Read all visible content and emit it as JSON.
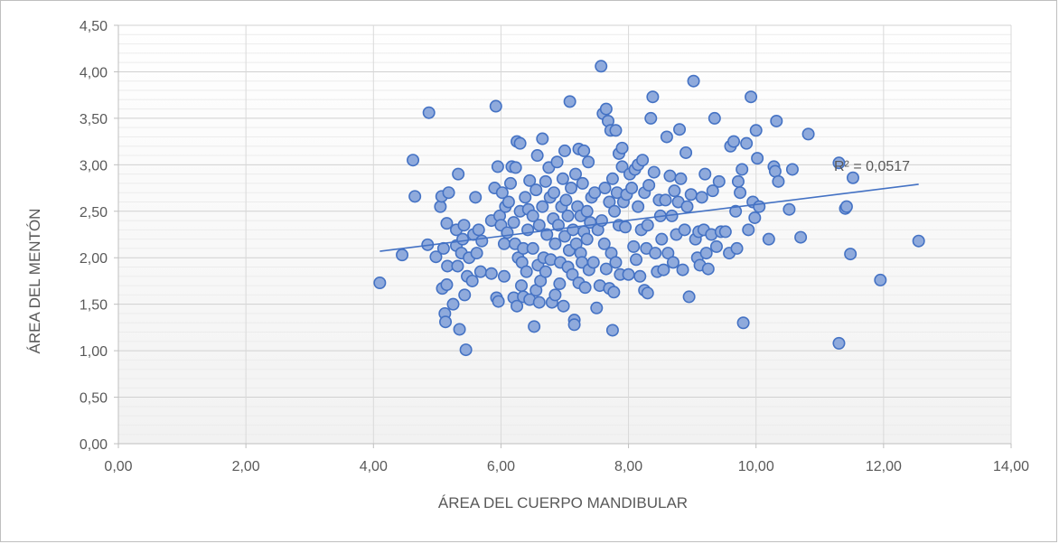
{
  "chart_data": {
    "type": "scatter",
    "title": "",
    "xlabel": "ÁREA DEL CUERPO MANDIBULAR",
    "ylabel": "ÁREA DEL MENTÓN",
    "xlim": [
      0,
      14
    ],
    "ylim": [
      0,
      4.5
    ],
    "x_ticks": [
      "0,00",
      "2,00",
      "4,00",
      "6,00",
      "8,00",
      "10,00",
      "12,00",
      "14,00"
    ],
    "y_ticks": [
      "0,00",
      "0,50",
      "1,00",
      "1,50",
      "2,00",
      "2,50",
      "3,00",
      "3,50",
      "4,00",
      "4,50"
    ],
    "grid": true,
    "legend": "none",
    "colors": {
      "marker_fill": "#8faadc",
      "marker_edge": "#4472c4",
      "trendline": "#4472c4",
      "grid": "#d9d9d9"
    },
    "trendline": {
      "type": "linear",
      "x_range": [
        4.1,
        12.55
      ],
      "y_start": 2.07,
      "y_end": 2.79,
      "label": "R² = 0,0517"
    },
    "points": [
      [
        4.1,
        1.73
      ],
      [
        4.45,
        2.03
      ],
      [
        4.62,
        3.05
      ],
      [
        4.65,
        2.66
      ],
      [
        4.85,
        2.14
      ],
      [
        4.87,
        3.56
      ],
      [
        4.98,
        2.01
      ],
      [
        5.05,
        2.55
      ],
      [
        5.07,
        2.66
      ],
      [
        5.08,
        1.67
      ],
      [
        5.1,
        2.1
      ],
      [
        5.12,
        1.4
      ],
      [
        5.13,
        1.31
      ],
      [
        5.15,
        1.71
      ],
      [
        5.15,
        2.37
      ],
      [
        5.16,
        1.91
      ],
      [
        5.18,
        2.7
      ],
      [
        5.25,
        1.5
      ],
      [
        5.3,
        2.13
      ],
      [
        5.3,
        2.3
      ],
      [
        5.32,
        1.91
      ],
      [
        5.33,
        2.9
      ],
      [
        5.35,
        1.23
      ],
      [
        5.38,
        2.05
      ],
      [
        5.4,
        2.2
      ],
      [
        5.42,
        2.35
      ],
      [
        5.43,
        1.6
      ],
      [
        5.45,
        1.01
      ],
      [
        5.47,
        1.8
      ],
      [
        5.5,
        2.0
      ],
      [
        5.55,
        1.75
      ],
      [
        5.57,
        2.25
      ],
      [
        5.6,
        2.65
      ],
      [
        5.62,
        2.05
      ],
      [
        5.65,
        2.3
      ],
      [
        5.68,
        1.85
      ],
      [
        5.7,
        2.18
      ],
      [
        5.85,
        1.83
      ],
      [
        5.85,
        2.4
      ],
      [
        5.9,
        2.75
      ],
      [
        5.92,
        3.63
      ],
      [
        5.93,
        1.57
      ],
      [
        5.95,
        2.98
      ],
      [
        5.96,
        1.53
      ],
      [
        5.98,
        2.45
      ],
      [
        6.0,
        2.35
      ],
      [
        6.02,
        2.7
      ],
      [
        6.05,
        2.15
      ],
      [
        6.05,
        1.8
      ],
      [
        6.07,
        2.55
      ],
      [
        6.1,
        2.27
      ],
      [
        6.12,
        2.6
      ],
      [
        6.15,
        2.8
      ],
      [
        6.17,
        2.98
      ],
      [
        6.2,
        2.38
      ],
      [
        6.2,
        1.57
      ],
      [
        6.22,
        2.15
      ],
      [
        6.23,
        2.97
      ],
      [
        6.25,
        3.25
      ],
      [
        6.25,
        1.48
      ],
      [
        6.27,
        2.0
      ],
      [
        6.3,
        3.23
      ],
      [
        6.3,
        2.5
      ],
      [
        6.32,
        1.7
      ],
      [
        6.33,
        1.95
      ],
      [
        6.35,
        2.1
      ],
      [
        6.35,
        1.58
      ],
      [
        6.38,
        2.65
      ],
      [
        6.4,
        1.85
      ],
      [
        6.42,
        2.3
      ],
      [
        6.43,
        2.52
      ],
      [
        6.45,
        1.55
      ],
      [
        6.45,
        2.83
      ],
      [
        6.5,
        2.45
      ],
      [
        6.5,
        2.1
      ],
      [
        6.52,
        1.26
      ],
      [
        6.55,
        1.65
      ],
      [
        6.55,
        2.73
      ],
      [
        6.57,
        3.1
      ],
      [
        6.58,
        1.92
      ],
      [
        6.6,
        2.35
      ],
      [
        6.6,
        1.52
      ],
      [
        6.62,
        1.75
      ],
      [
        6.65,
        2.55
      ],
      [
        6.65,
        3.28
      ],
      [
        6.67,
        2.0
      ],
      [
        6.7,
        2.82
      ],
      [
        6.7,
        1.85
      ],
      [
        6.72,
        2.25
      ],
      [
        6.75,
        2.97
      ],
      [
        6.77,
        2.65
      ],
      [
        6.78,
        1.98
      ],
      [
        6.8,
        1.52
      ],
      [
        6.82,
        2.42
      ],
      [
        6.83,
        2.7
      ],
      [
        6.85,
        1.6
      ],
      [
        6.85,
        2.15
      ],
      [
        6.88,
        3.03
      ],
      [
        6.9,
        2.35
      ],
      [
        6.92,
        1.72
      ],
      [
        6.93,
        1.95
      ],
      [
        6.95,
        2.55
      ],
      [
        6.97,
        2.85
      ],
      [
        6.98,
        1.48
      ],
      [
        7.0,
        3.15
      ],
      [
        7.0,
        2.23
      ],
      [
        7.02,
        2.62
      ],
      [
        7.05,
        1.9
      ],
      [
        7.05,
        2.45
      ],
      [
        7.07,
        2.08
      ],
      [
        7.08,
        3.68
      ],
      [
        7.1,
        2.75
      ],
      [
        7.12,
        1.82
      ],
      [
        7.13,
        2.3
      ],
      [
        7.15,
        1.33
      ],
      [
        7.15,
        1.28
      ],
      [
        7.17,
        2.9
      ],
      [
        7.18,
        2.15
      ],
      [
        7.2,
        2.55
      ],
      [
        7.22,
        1.73
      ],
      [
        7.22,
        3.17
      ],
      [
        7.25,
        2.05
      ],
      [
        7.25,
        2.45
      ],
      [
        7.27,
        1.95
      ],
      [
        7.28,
        2.8
      ],
      [
        7.3,
        2.28
      ],
      [
        7.3,
        3.15
      ],
      [
        7.32,
        1.68
      ],
      [
        7.35,
        2.2
      ],
      [
        7.35,
        2.5
      ],
      [
        7.37,
        3.03
      ],
      [
        7.38,
        1.87
      ],
      [
        7.4,
        2.38
      ],
      [
        7.42,
        2.65
      ],
      [
        7.45,
        1.95
      ],
      [
        7.47,
        2.7
      ],
      [
        7.5,
        1.46
      ],
      [
        7.52,
        2.3
      ],
      [
        7.55,
        1.7
      ],
      [
        7.57,
        4.06
      ],
      [
        7.58,
        2.4
      ],
      [
        7.6,
        3.55
      ],
      [
        7.62,
        2.15
      ],
      [
        7.63,
        2.75
      ],
      [
        7.65,
        3.6
      ],
      [
        7.65,
        1.88
      ],
      [
        7.68,
        3.47
      ],
      [
        7.7,
        2.6
      ],
      [
        7.7,
        1.67
      ],
      [
        7.72,
        3.37
      ],
      [
        7.73,
        2.05
      ],
      [
        7.75,
        1.22
      ],
      [
        7.75,
        2.85
      ],
      [
        7.77,
        1.63
      ],
      [
        7.78,
        2.5
      ],
      [
        7.8,
        3.37
      ],
      [
        7.8,
        1.95
      ],
      [
        7.82,
        2.7
      ],
      [
        7.85,
        3.12
      ],
      [
        7.85,
        2.35
      ],
      [
        7.87,
        1.82
      ],
      [
        7.9,
        3.18
      ],
      [
        7.9,
        2.98
      ],
      [
        7.92,
        2.6
      ],
      [
        7.95,
        2.33
      ],
      [
        7.97,
        2.68
      ],
      [
        8.0,
        1.82
      ],
      [
        8.02,
        2.9
      ],
      [
        8.05,
        2.75
      ],
      [
        8.08,
        2.12
      ],
      [
        8.1,
        2.95
      ],
      [
        8.12,
        1.98
      ],
      [
        8.15,
        2.55
      ],
      [
        8.15,
        3.0
      ],
      [
        8.18,
        1.8
      ],
      [
        8.2,
        2.3
      ],
      [
        8.22,
        3.05
      ],
      [
        8.25,
        1.65
      ],
      [
        8.25,
        2.7
      ],
      [
        8.28,
        2.1
      ],
      [
        8.3,
        1.62
      ],
      [
        8.3,
        2.35
      ],
      [
        8.32,
        2.78
      ],
      [
        8.35,
        3.5
      ],
      [
        8.38,
        3.73
      ],
      [
        8.4,
        2.92
      ],
      [
        8.42,
        2.05
      ],
      [
        8.45,
        1.85
      ],
      [
        8.48,
        2.62
      ],
      [
        8.5,
        2.45
      ],
      [
        8.52,
        2.2
      ],
      [
        8.55,
        1.87
      ],
      [
        8.58,
        2.62
      ],
      [
        8.6,
        3.3
      ],
      [
        8.62,
        2.05
      ],
      [
        8.65,
        2.88
      ],
      [
        8.68,
        2.45
      ],
      [
        8.7,
        1.95
      ],
      [
        8.72,
        2.72
      ],
      [
        8.75,
        2.25
      ],
      [
        8.78,
        2.6
      ],
      [
        8.8,
        3.38
      ],
      [
        8.82,
        2.85
      ],
      [
        8.85,
        1.87
      ],
      [
        8.88,
        2.3
      ],
      [
        8.9,
        3.13
      ],
      [
        8.92,
        2.55
      ],
      [
        8.95,
        1.58
      ],
      [
        8.98,
        2.68
      ],
      [
        9.02,
        3.9
      ],
      [
        9.05,
        2.2
      ],
      [
        9.08,
        2.0
      ],
      [
        9.1,
        2.28
      ],
      [
        9.12,
        1.92
      ],
      [
        9.15,
        2.65
      ],
      [
        9.18,
        2.3
      ],
      [
        9.2,
        2.9
      ],
      [
        9.22,
        2.05
      ],
      [
        9.25,
        1.88
      ],
      [
        9.3,
        2.25
      ],
      [
        9.32,
        2.72
      ],
      [
        9.35,
        3.5
      ],
      [
        9.38,
        2.12
      ],
      [
        9.42,
        2.82
      ],
      [
        9.45,
        2.28
      ],
      [
        9.52,
        2.28
      ],
      [
        9.58,
        2.05
      ],
      [
        9.6,
        3.2
      ],
      [
        9.65,
        3.25
      ],
      [
        9.68,
        2.5
      ],
      [
        9.7,
        2.1
      ],
      [
        9.72,
        2.82
      ],
      [
        9.75,
        2.7
      ],
      [
        9.78,
        2.95
      ],
      [
        9.8,
        1.3
      ],
      [
        9.85,
        3.23
      ],
      [
        9.88,
        2.3
      ],
      [
        9.92,
        3.73
      ],
      [
        9.95,
        2.6
      ],
      [
        9.98,
        2.43
      ],
      [
        10.0,
        3.37
      ],
      [
        10.02,
        3.07
      ],
      [
        10.05,
        2.55
      ],
      [
        10.2,
        2.2
      ],
      [
        10.28,
        2.98
      ],
      [
        10.3,
        2.93
      ],
      [
        10.32,
        3.47
      ],
      [
        10.35,
        2.82
      ],
      [
        10.52,
        2.52
      ],
      [
        10.57,
        2.95
      ],
      [
        10.7,
        2.22
      ],
      [
        10.82,
        3.33
      ],
      [
        11.3,
        1.08
      ],
      [
        11.3,
        3.02
      ],
      [
        11.4,
        2.53
      ],
      [
        11.42,
        2.55
      ],
      [
        11.48,
        2.04
      ],
      [
        11.52,
        2.86
      ],
      [
        11.95,
        1.76
      ],
      [
        12.55,
        2.18
      ]
    ]
  }
}
